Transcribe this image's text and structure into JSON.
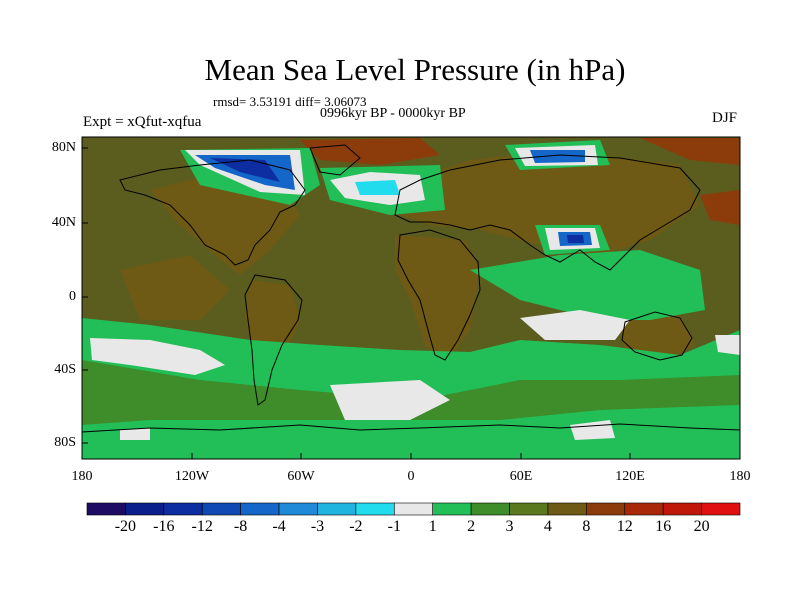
{
  "title": "Mean Sea Level Pressure (in hPa)",
  "stats": "rmsd= 3.53191 diff= 3.06073",
  "subtitle": "0996kyr BP - 0000kyr BP",
  "experiment": "Expt = xQfut-xqfua",
  "season": "DJF",
  "axes": {
    "y_labels": [
      "80N",
      "40N",
      "0",
      "40S",
      "80S"
    ],
    "y_values": [
      80,
      40,
      0,
      -40,
      -80
    ],
    "x_labels": [
      "180",
      "120W",
      "60W",
      "0",
      "60E",
      "120E",
      "180"
    ],
    "x_values": [
      -180,
      -120,
      -60,
      0,
      60,
      120,
      180
    ],
    "lat_range": [
      -90,
      90
    ],
    "lon_range": [
      -180,
      180
    ]
  },
  "colorbar": {
    "labels": [
      "-20",
      "-16",
      "-12",
      "-8",
      "-4",
      "-3",
      "-2",
      "-1",
      "1",
      "2",
      "3",
      "4",
      "8",
      "12",
      "16",
      "20"
    ],
    "colors": [
      "#1e0c64",
      "#0a1e8c",
      "#0c2ea0",
      "#1048b4",
      "#1466c8",
      "#1f8ad8",
      "#1fb4e0",
      "#20dcec",
      "#e8e8e8",
      "#22bf58",
      "#3e8c2a",
      "#5a781e",
      "#6e5a14",
      "#8c3c0a",
      "#a82808",
      "#c01808",
      "#e01010"
    ]
  },
  "colors": {
    "background_field": "#5a5d1e",
    "coastline": "#000000"
  }
}
